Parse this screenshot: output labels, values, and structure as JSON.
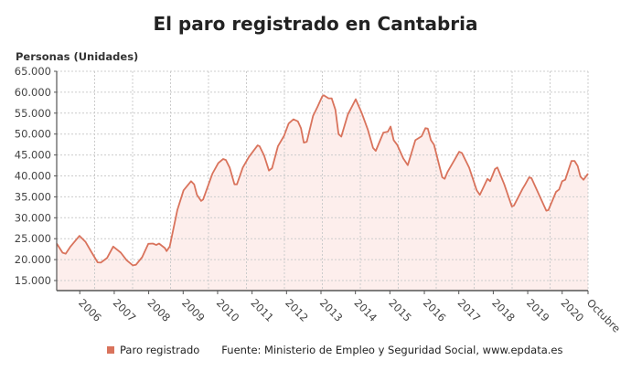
{
  "chart_data": {
    "type": "area",
    "title": "El paro registrado en Cantabria",
    "ylabel": "Personas (Unidades)",
    "xlabel": "",
    "ylim": [
      12600,
      65000
    ],
    "xlim": [
      2005.33,
      2020.75
    ],
    "yticks": [
      15000,
      20000,
      25000,
      30000,
      35000,
      40000,
      45000,
      50000,
      55000,
      60000,
      65000
    ],
    "ytick_labels": [
      "15.000",
      "20.000",
      "25.000",
      "30.000",
      "35.000",
      "40.000",
      "45.000",
      "50.000",
      "55.000",
      "60.000",
      "65.000"
    ],
    "xticks": [
      2006,
      2007,
      2008,
      2009,
      2010,
      2011,
      2012,
      2013,
      2014,
      2015,
      2016,
      2017,
      2018,
      2019,
      2020,
      2020.75
    ],
    "xtick_labels": [
      "2006",
      "2007",
      "2008",
      "2009",
      "2010",
      "2011",
      "2012",
      "2013",
      "2014",
      "2015",
      "2016",
      "2017",
      "2018",
      "2019",
      "2020",
      "Octubre"
    ],
    "grid": true,
    "line_color": "#d9735c",
    "fill_color": "#fdeeec",
    "legend_position": "bottom",
    "series": [
      {
        "name": "Paro registrado",
        "points": [
          [
            2005.33,
            23850
          ],
          [
            2005.5,
            21670
          ],
          [
            2005.59,
            21400
          ],
          [
            2005.73,
            23130
          ],
          [
            2005.99,
            25670
          ],
          [
            2006.17,
            24220
          ],
          [
            2006.35,
            21670
          ],
          [
            2006.52,
            19350
          ],
          [
            2006.61,
            19280
          ],
          [
            2006.79,
            20370
          ],
          [
            2006.97,
            23130
          ],
          [
            2007.19,
            21670
          ],
          [
            2007.36,
            19850
          ],
          [
            2007.54,
            18630
          ],
          [
            2007.63,
            18770
          ],
          [
            2007.81,
            20580
          ],
          [
            2007.99,
            23780
          ],
          [
            2008.12,
            23850
          ],
          [
            2008.22,
            23490
          ],
          [
            2008.3,
            23850
          ],
          [
            2008.47,
            22760
          ],
          [
            2008.52,
            22040
          ],
          [
            2008.61,
            23130
          ],
          [
            2008.83,
            31840
          ],
          [
            2009.01,
            36550
          ],
          [
            2009.23,
            38730
          ],
          [
            2009.32,
            38000
          ],
          [
            2009.4,
            35460
          ],
          [
            2009.52,
            34010
          ],
          [
            2009.58,
            34370
          ],
          [
            2009.85,
            40540
          ],
          [
            2010.02,
            43080
          ],
          [
            2010.16,
            44030
          ],
          [
            2010.24,
            43810
          ],
          [
            2010.35,
            42000
          ],
          [
            2010.49,
            38000
          ],
          [
            2010.56,
            38000
          ],
          [
            2010.73,
            42000
          ],
          [
            2010.91,
            44540
          ],
          [
            2011.16,
            47290
          ],
          [
            2011.22,
            47070
          ],
          [
            2011.35,
            44900
          ],
          [
            2011.49,
            41270
          ],
          [
            2011.58,
            41850
          ],
          [
            2011.75,
            47070
          ],
          [
            2011.93,
            49610
          ],
          [
            2012.06,
            52520
          ],
          [
            2012.2,
            53530
          ],
          [
            2012.33,
            53030
          ],
          [
            2012.42,
            51430
          ],
          [
            2012.5,
            47950
          ],
          [
            2012.59,
            48160
          ],
          [
            2012.77,
            54330
          ],
          [
            2012.9,
            56510
          ],
          [
            2013.04,
            59050
          ],
          [
            2013.08,
            59270
          ],
          [
            2013.22,
            58540
          ],
          [
            2013.31,
            58540
          ],
          [
            2013.42,
            55780
          ],
          [
            2013.51,
            49980
          ],
          [
            2013.59,
            49400
          ],
          [
            2013.78,
            54700
          ],
          [
            2014.01,
            58320
          ],
          [
            2014.18,
            55070
          ],
          [
            2014.36,
            51070
          ],
          [
            2014.51,
            46710
          ],
          [
            2014.59,
            45990
          ],
          [
            2014.81,
            50350
          ],
          [
            2014.94,
            50560
          ],
          [
            2015.02,
            51790
          ],
          [
            2015.11,
            48530
          ],
          [
            2015.21,
            47440
          ],
          [
            2015.39,
            44170
          ],
          [
            2015.52,
            42580
          ],
          [
            2015.74,
            48530
          ],
          [
            2015.92,
            49470
          ],
          [
            2016.03,
            51430
          ],
          [
            2016.1,
            51290
          ],
          [
            2016.19,
            48530
          ],
          [
            2016.28,
            47440
          ],
          [
            2016.52,
            39670
          ],
          [
            2016.59,
            39310
          ],
          [
            2016.67,
            40910
          ],
          [
            2016.9,
            44170
          ],
          [
            2017.01,
            45770
          ],
          [
            2017.09,
            45480
          ],
          [
            2017.3,
            41990
          ],
          [
            2017.52,
            36550
          ],
          [
            2017.61,
            35460
          ],
          [
            2017.83,
            39310
          ],
          [
            2017.91,
            38730
          ],
          [
            2018.05,
            41630
          ],
          [
            2018.12,
            42000
          ],
          [
            2018.32,
            38000
          ],
          [
            2018.54,
            32700
          ],
          [
            2018.6,
            32920
          ],
          [
            2018.85,
            36910
          ],
          [
            2018.93,
            38000
          ],
          [
            2019.04,
            39670
          ],
          [
            2019.11,
            39450
          ],
          [
            2019.33,
            35460
          ],
          [
            2019.54,
            31690
          ],
          [
            2019.6,
            31840
          ],
          [
            2019.82,
            36190
          ],
          [
            2019.91,
            36770
          ],
          [
            2020.0,
            38730
          ],
          [
            2020.09,
            39090
          ],
          [
            2020.27,
            43590
          ],
          [
            2020.36,
            43590
          ],
          [
            2020.45,
            42360
          ],
          [
            2020.53,
            39820
          ],
          [
            2020.62,
            39090
          ],
          [
            2020.75,
            40540
          ]
        ]
      }
    ],
    "source": "Fuente: Ministerio de Empleo y Seguridad Social, www.epdata.es"
  }
}
